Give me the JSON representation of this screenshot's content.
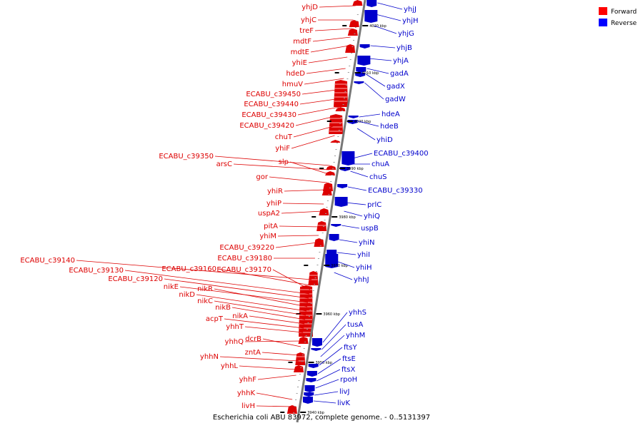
{
  "title": "Escherichia coli ABU 83972, complete genome. - 0..5131397",
  "legend": [
    {
      "name": "Forward",
      "color": "#ff0000"
    },
    {
      "name": "Reverse",
      "color": "#0000ff"
    }
  ],
  "colors": {
    "forward": "#dd0000",
    "reverse": "#0000cc",
    "axis": "#777777"
  },
  "ticks": [
    "4020 kbp",
    "4010 kbp",
    "4000 kbp",
    "3990 kbp",
    "3980 kbp",
    "3970 kbp",
    "3960 kbp",
    "3950 kbp",
    "3940 kbp"
  ],
  "forward_genes": [
    "yhjD",
    "yhjC",
    "treF",
    "mdtF",
    "mdtE",
    "yhiE",
    "hdeD",
    "hmuV",
    "ECABU_c39450",
    "ECABU_c39440",
    "ECABU_c39430",
    "ECABU_c39420",
    "chuT",
    "yhiF",
    "ECABU_c39350",
    "arsC",
    "slp",
    "gor",
    "yhiR",
    "yhiP",
    "uspA2",
    "pitA",
    "yhiM",
    "ECABU_c39220",
    "ECABU_c39180",
    "ECABU_c39140",
    "ECABU_c39160",
    "ECABU_c39170",
    "ECABU_c39130",
    "ECABU_c39120",
    "nikE",
    "nikR",
    "nikD",
    "nikC",
    "nikB",
    "nikA",
    "acpT",
    "yhhT",
    "yhhQ",
    "dcrB",
    "zntA",
    "yhhN",
    "yhhL",
    "yhhF",
    "yhhK",
    "livH"
  ],
  "reverse_genes": [
    "yhjJ",
    "yhjH",
    "yhjG",
    "yhjB",
    "yhjA",
    "gadA",
    "gadX",
    "gadW",
    "hdeA",
    "hdeB",
    "yhiD",
    "ECABU_c39400",
    "chuA",
    "chuS",
    "ECABU_c39330",
    "prlC",
    "yhiQ",
    "uspB",
    "yhiN",
    "yhiI",
    "yhiH",
    "yhhJ",
    "yhhS",
    "tusA",
    "yhhM",
    "ftsY",
    "ftsE",
    "ftsX",
    "rpoH",
    "livJ",
    "livK"
  ]
}
